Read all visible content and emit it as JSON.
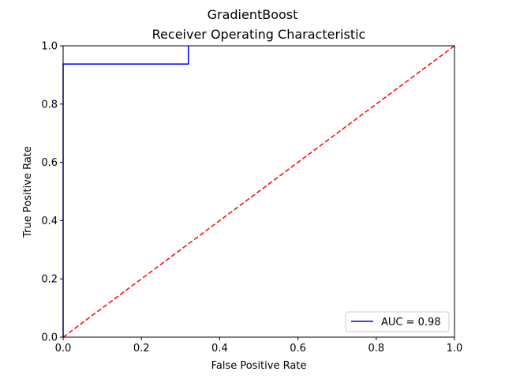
{
  "chart_data": {
    "type": "line",
    "suptitle": "GradientBoost",
    "title": "Receiver Operating Characteristic",
    "xlabel": "False Positive Rate",
    "ylabel": "True Positive Rate",
    "xlim": [
      0,
      1
    ],
    "ylim": [
      0,
      1
    ],
    "xticks": [
      "0.0",
      "0.2",
      "0.4",
      "0.6",
      "0.8",
      "1.0"
    ],
    "yticks": [
      "0.0",
      "0.2",
      "0.4",
      "0.6",
      "0.8",
      "1.0"
    ],
    "grid": false,
    "legend_position": "lower right",
    "series": [
      {
        "name": "AUC = 0.98",
        "color": "#0000ff",
        "style": "solid",
        "x": [
          0.0,
          0.0,
          0.0,
          0.32,
          0.32
        ],
        "y": [
          0.0,
          0.875,
          0.9375,
          0.9375,
          1.0
        ]
      },
      {
        "color": "#ff0000",
        "style": "dashed",
        "x": [
          0.0,
          1.0
        ],
        "y": [
          0.0,
          1.0
        ]
      }
    ]
  }
}
